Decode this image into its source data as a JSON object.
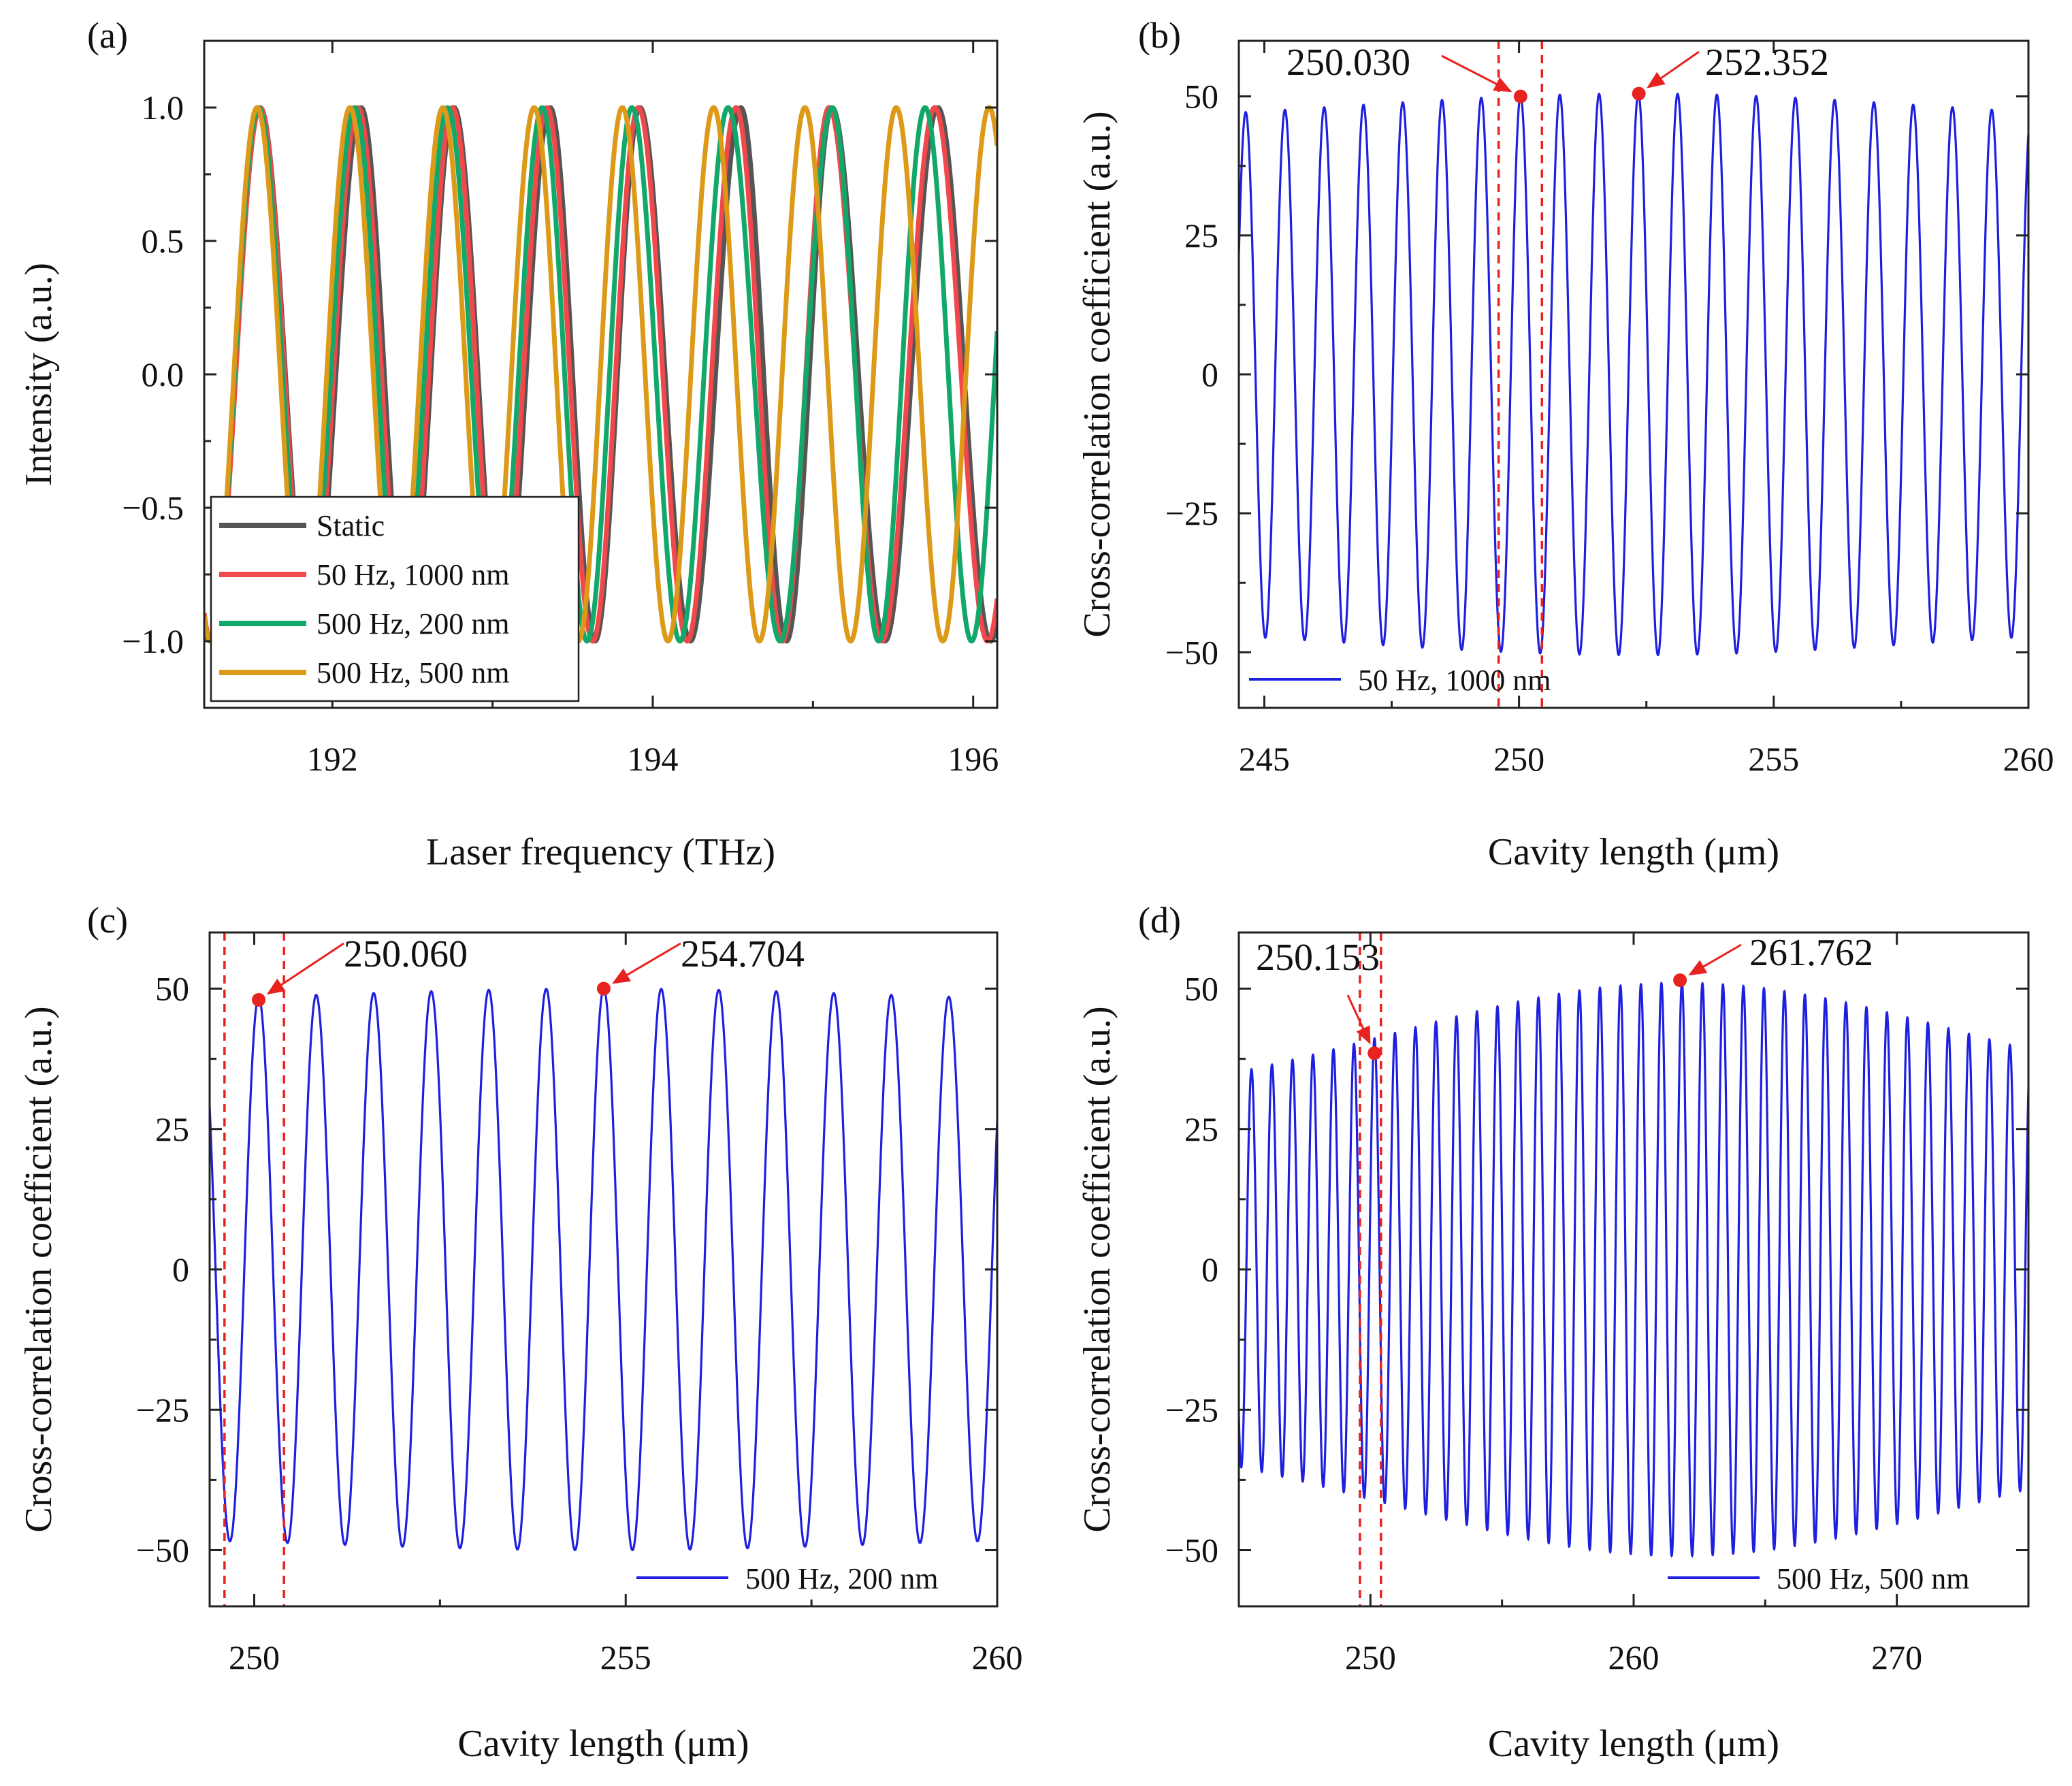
{
  "chart_data": [
    {
      "id": "a",
      "panel_label": "(a)",
      "type": "line",
      "xlabel": "Laser frequency (THz)",
      "ylabel": "Intensity (a.u.)",
      "xlim": [
        191.2,
        196.15
      ],
      "ylim": [
        -1.25,
        1.25
      ],
      "xticks": [
        192,
        194,
        196
      ],
      "xtick_labels": [
        "192",
        "194",
        "196"
      ],
      "yticks": [
        1.0,
        0.5,
        0.0,
        -0.5,
        -1.0
      ],
      "ytick_labels": [
        "1.0",
        "0.5",
        "0.0",
        "−0.5",
        "−1.0"
      ],
      "legend": {
        "position": "bottom-left"
      },
      "series": [
        {
          "name": "Static",
          "color": "#555555",
          "peaks": [
            191.55,
            192.18,
            192.76,
            193.36,
            193.92,
            194.55,
            195.12,
            195.78
          ]
        },
        {
          "name": "50 Hz, 1000 nm",
          "color": "#f0484b",
          "peaks": [
            191.55,
            192.16,
            192.75,
            193.34,
            193.91,
            194.52,
            195.1,
            195.76
          ]
        },
        {
          "name": "500 Hz, 200 nm",
          "color": "#12a86a",
          "peaks": [
            191.54,
            192.14,
            192.72,
            193.31,
            193.87,
            194.47,
            195.12,
            195.7
          ]
        },
        {
          "name": "500 Hz, 500 nm",
          "color": "#dd9a18",
          "peaks": [
            191.53,
            192.11,
            192.69,
            193.26,
            193.81,
            194.38,
            194.95,
            195.52,
            196.1
          ]
        }
      ]
    },
    {
      "id": "b",
      "panel_label": "(b)",
      "type": "line",
      "xlabel": "Cavity length (μm)",
      "ylabel": "Cross-correlation coefficient (a.u.)",
      "xlim": [
        244.5,
        260
      ],
      "ylim": [
        -60,
        60
      ],
      "xticks": [
        245,
        250,
        255,
        260
      ],
      "xtick_labels": [
        "245",
        "250",
        "255",
        "260"
      ],
      "yticks": [
        50,
        25,
        0,
        -25,
        -50
      ],
      "ytick_labels": [
        "50",
        "25",
        "0",
        "−25",
        "−50"
      ],
      "legend": {
        "position": "bottom-left"
      },
      "series": [
        {
          "name": "50 Hz, 1000 nm",
          "color": "#1f1fe0",
          "period": 0.7708,
          "phase_peak": 250.03,
          "amplitude_center": 252.352,
          "amplitude_max": 50.5,
          "amplitude_min": 45.0,
          "amplitude_width": 8.0
        }
      ],
      "dashed_lines": [
        249.6,
        250.45
      ],
      "annotations": [
        {
          "text": "250.030",
          "x": 250.03,
          "y": 50
        },
        {
          "text": "252.352",
          "x": 252.352,
          "y": 50.5
        }
      ]
    },
    {
      "id": "c",
      "panel_label": "(c)",
      "type": "line",
      "xlabel": "Cavity length (μm)",
      "ylabel": "Cross-correlation coefficient (a.u.)",
      "xlim": [
        249.4,
        260
      ],
      "ylim": [
        -60,
        60
      ],
      "xticks": [
        250,
        255,
        260
      ],
      "xtick_labels": [
        "250",
        "255",
        "260"
      ],
      "yticks": [
        50,
        25,
        0,
        -25,
        -50
      ],
      "ytick_labels": [
        "50",
        "25",
        "0",
        "−25",
        "−50"
      ],
      "legend": {
        "position": "bottom-right"
      },
      "series": [
        {
          "name": "500 Hz, 200 nm",
          "color": "#1f1fe0",
          "period": 0.774,
          "phase_peak": 250.06,
          "amplitude_center": 254.704,
          "amplitude_max": 50.0,
          "amplitude_min": 47.5,
          "amplitude_width": 5.0
        }
      ],
      "dashed_lines": [
        249.6,
        250.4
      ],
      "annotations": [
        {
          "text": "250.060",
          "x": 250.06,
          "y": 48
        },
        {
          "text": "254.704",
          "x": 254.704,
          "y": 50
        }
      ]
    },
    {
      "id": "d",
      "panel_label": "(d)",
      "type": "line",
      "xlabel": "Cavity length (μm)",
      "ylabel": "Cross-correlation coefficient (a.u.)",
      "xlim": [
        245,
        275
      ],
      "ylim": [
        -60,
        60
      ],
      "xticks": [
        250,
        260,
        270
      ],
      "xtick_labels": [
        "250",
        "260",
        "270"
      ],
      "yticks": [
        50,
        25,
        0,
        -25,
        -50
      ],
      "ytick_labels": [
        "50",
        "25",
        "0",
        "−25",
        "−50"
      ],
      "legend": {
        "position": "bottom-right"
      },
      "series": [
        {
          "name": "500 Hz, 500 nm",
          "color": "#1f1fe0",
          "period": 0.7788,
          "phase_peak": 250.153,
          "amplitude_center": 261.762,
          "amplitude_max": 51.0,
          "amplitude_min": 28.0,
          "amplitude_width": 15.5
        }
      ],
      "dashed_lines": [
        249.6,
        250.4
      ],
      "annotations": [
        {
          "text": "250.153",
          "x": 250.153,
          "y": 38.5
        },
        {
          "text": "261.762",
          "x": 261.762,
          "y": 51.5
        }
      ]
    }
  ]
}
